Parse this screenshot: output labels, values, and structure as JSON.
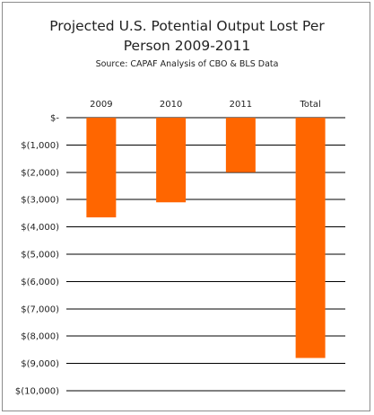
{
  "chart_data": {
    "type": "bar",
    "title": "Projected U.S. Potential Output Lost Per\nPerson 2009-2011",
    "subtitle": "Source: CAPAF Analysis of CBO & BLS Data",
    "xlabel": "",
    "ylabel": "",
    "categories": [
      "2009",
      "2010",
      "2011",
      "Total"
    ],
    "values": [
      -3650,
      -3100,
      -2000,
      -8800
    ],
    "ylim": [
      -10000,
      0
    ],
    "yticks": [
      0,
      -1000,
      -2000,
      -3000,
      -4000,
      -5000,
      -6000,
      -7000,
      -8000,
      -9000,
      -10000
    ],
    "ytick_labels": [
      "$-",
      "$(1,000)",
      "$(2,000)",
      "$(3,000)",
      "$(4,000)",
      "$(5,000)",
      "$(6,000)",
      "$(7,000)",
      "$(8,000)",
      "$(9,000)",
      "$(10,000)"
    ],
    "category_axis_position": "top",
    "grid": true,
    "bar_color": "#ff6600",
    "legend": false
  }
}
